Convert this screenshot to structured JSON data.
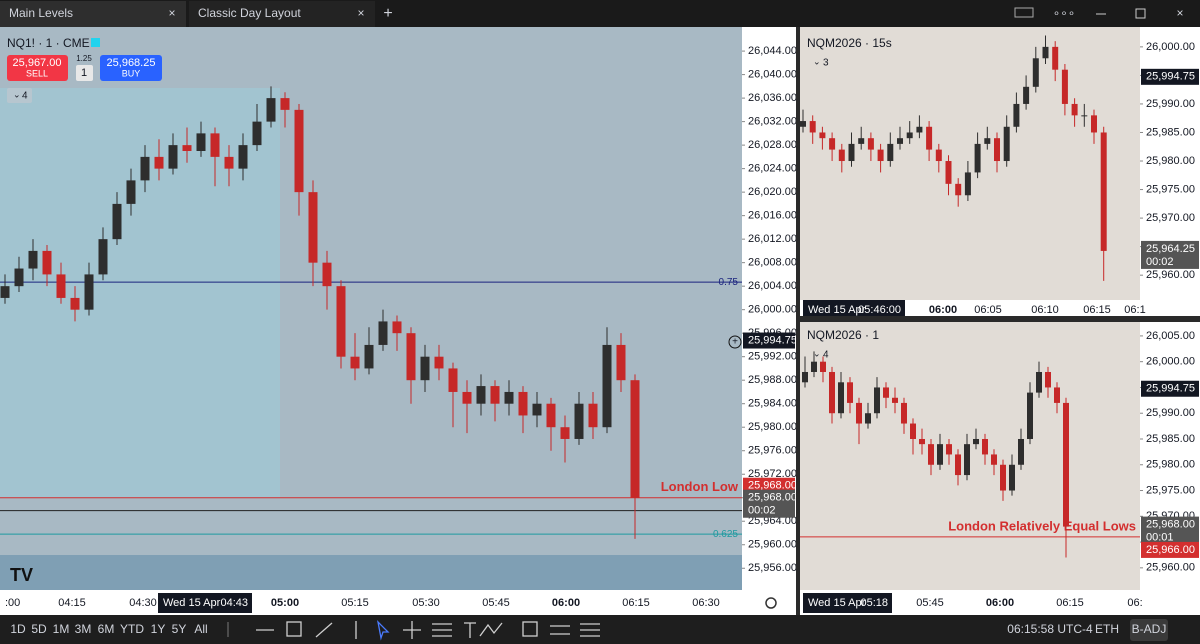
{
  "tabs": [
    "Main Levels",
    "Classic Day Layout"
  ],
  "chart_data": [
    {
      "type": "candlestick",
      "symbol": "NQ1! · 1 · CME",
      "indicators": "4",
      "sell": {
        "price": "25,967.00",
        "label": "SELL"
      },
      "spread": "1.25",
      "quantity": "1",
      "buy": {
        "price": "25,968.25",
        "label": "BUY"
      },
      "up_color": "#2e2e2e",
      "down_color": "#c62828",
      "background": "#a8b9c4",
      "ylim": [
        25952.3,
        26048.1
      ],
      "yticks": [
        {
          "value": 26044,
          "label": "26,044.00"
        },
        {
          "value": 26040,
          "label": "26,040.00"
        },
        {
          "value": 26036,
          "label": "26,036.00"
        },
        {
          "value": 26032,
          "label": "26,032.00"
        },
        {
          "value": 26028,
          "label": "26,028.00"
        },
        {
          "value": 26024,
          "label": "26,024.00"
        },
        {
          "value": 26020,
          "label": "26,020.00"
        },
        {
          "value": 26016,
          "label": "26,016.00"
        },
        {
          "value": 26012,
          "label": "26,012.00"
        },
        {
          "value": 26008,
          "label": "26,008.00"
        },
        {
          "value": 26004,
          "label": "26,004.00"
        },
        {
          "value": 26000,
          "label": "26,000.00"
        },
        {
          "value": 25996,
          "label": "25,996.00"
        },
        {
          "value": 25992,
          "label": "25,992.00"
        },
        {
          "value": 25988,
          "label": "25,988.00"
        },
        {
          "value": 25984,
          "label": "25,984.00"
        },
        {
          "value": 25980,
          "label": "25,980.00"
        },
        {
          "value": 25976,
          "label": "25,976.00"
        },
        {
          "value": 25972,
          "label": "25,972.00"
        },
        {
          "value": 25968,
          "label": "25,968.00"
        },
        {
          "value": 25964,
          "label": "25,964.00"
        },
        {
          "value": 25960,
          "label": "25,960.00"
        },
        {
          "value": 25956,
          "label": "25,956.00"
        }
      ],
      "time_labels": [
        ":00",
        "04:15",
        "04:30",
        "05:00",
        "05:15",
        "05:30",
        "05:45",
        "06:00",
        "06:15",
        "06:30"
      ],
      "crosshair_date": "Wed 15 Apr",
      "crosshair_time": "04:43",
      "levels": [
        {
          "value": 26004.68,
          "label": "0.75",
          "color": "#1a237e"
        },
        {
          "value": 25968,
          "label": "London Low",
          "color": "#d32f2f",
          "bold": true
        },
        {
          "value": 25965.8,
          "color": "#222222"
        },
        {
          "value": 25961.8,
          "label": "0.625",
          "color": "#1e9aa0"
        }
      ],
      "price_labels": [
        {
          "value": 25994.75,
          "label": "25,994.75",
          "color": "#131722"
        },
        {
          "value": 25968,
          "label": "25,968.00",
          "color": "#d32f2f"
        },
        {
          "value": 25968,
          "label": "25,968.00",
          "countdown": "00:02",
          "color": "#555555"
        }
      ],
      "candles": [
        [
          26002,
          26006,
          26001,
          26004
        ],
        [
          26004,
          26009,
          26003,
          26007
        ],
        [
          26007,
          26012,
          26005,
          26010
        ],
        [
          26010,
          26011,
          26004,
          26006
        ],
        [
          26006,
          26008,
          26001,
          26002
        ],
        [
          26002,
          26004,
          25998,
          26000
        ],
        [
          26000,
          26008,
          25999,
          26006
        ],
        [
          26006,
          26014,
          26005,
          26012
        ],
        [
          26012,
          26020,
          26011,
          26018
        ],
        [
          26018,
          26024,
          26016,
          26022
        ],
        [
          26022,
          26028,
          26020,
          26026
        ],
        [
          26026,
          26029,
          26022,
          26024
        ],
        [
          26024,
          26030,
          26023,
          26028
        ],
        [
          26028,
          26031,
          26025,
          26027
        ],
        [
          26027,
          26032,
          26026,
          26030
        ],
        [
          26030,
          26031,
          26021,
          26026
        ],
        [
          26026,
          26028,
          26021,
          26024
        ],
        [
          26024,
          26030,
          26022,
          26028
        ],
        [
          26028,
          26035,
          26027,
          26032
        ],
        [
          26032,
          26038,
          26031,
          26036
        ],
        [
          26036,
          26037,
          26031,
          26034
        ],
        [
          26034,
          26035,
          26016,
          26020
        ],
        [
          26020,
          26022,
          26004,
          26008
        ],
        [
          26008,
          26010,
          26000,
          26004
        ],
        [
          26004,
          26005,
          25990,
          25992
        ],
        [
          25992,
          25996,
          25988,
          25990
        ],
        [
          25990,
          25997,
          25989,
          25994
        ],
        [
          25994,
          26000,
          25993,
          25998
        ],
        [
          25998,
          25999,
          25993,
          25996
        ],
        [
          25996,
          25997,
          25984,
          25988
        ],
        [
          25988,
          25994,
          25986,
          25992
        ],
        [
          25992,
          25994,
          25988,
          25990
        ],
        [
          25990,
          25991,
          25980,
          25986
        ],
        [
          25986,
          25988,
          25979,
          25984
        ],
        [
          25984,
          25989,
          25982,
          25987
        ],
        [
          25987,
          25988,
          25981,
          25984
        ],
        [
          25984,
          25988,
          25982,
          25986
        ],
        [
          25986,
          25987,
          25979,
          25982
        ],
        [
          25982,
          25986,
          25980,
          25984
        ],
        [
          25984,
          25985,
          25976,
          25980
        ],
        [
          25980,
          25982,
          25974,
          25978
        ],
        [
          25978,
          25986,
          25977,
          25984
        ],
        [
          25984,
          25986,
          25978,
          25980
        ],
        [
          25980,
          25997,
          25979,
          25994
        ],
        [
          25994,
          25996,
          25986,
          25988
        ],
        [
          25988,
          25989,
          25961,
          25968
        ]
      ]
    },
    {
      "type": "candlestick",
      "symbol": "NQM2026 · 15s",
      "indicators": "3",
      "up_color": "#2e2e2e",
      "down_color": "#c62828",
      "background": "#e1dcd6",
      "ylim": [
        25955.65,
        26003.48
      ],
      "yticks": [
        {
          "value": 26000,
          "label": "26,000.00"
        },
        {
          "value": 25995,
          "label": "25,995.00"
        },
        {
          "value": 25990,
          "label": "25,990.00"
        },
        {
          "value": 25985,
          "label": "25,985.00"
        },
        {
          "value": 25980,
          "label": "25,980.00"
        },
        {
          "value": 25975,
          "label": "25,975.00"
        },
        {
          "value": 25970,
          "label": "25,970.00"
        },
        {
          "value": 25965,
          "label": "25,965.00"
        },
        {
          "value": 25960,
          "label": "25,960.00"
        }
      ],
      "time_labels": [
        "06:00",
        "06:05",
        "06:10",
        "06:15",
        "06:1"
      ],
      "crosshair_date": "Wed 15 Apr",
      "crosshair_time": "05:46:00",
      "levels": [],
      "price_labels": [
        {
          "value": 25994.75,
          "label": "25,994.75",
          "color": "#131722"
        },
        {
          "value": 25964.25,
          "label": "25,964.25",
          "countdown": "00:02",
          "color": "#555555"
        }
      ],
      "candles": [
        [
          25986,
          25989,
          25985,
          25987
        ],
        [
          25987,
          25988,
          25983,
          25985
        ],
        [
          25985,
          25986,
          25982,
          25984
        ],
        [
          25984,
          25985,
          25980,
          25982
        ],
        [
          25982,
          25983,
          25978,
          25980
        ],
        [
          25980,
          25985,
          25979,
          25983
        ],
        [
          25983,
          25986,
          25982,
          25984
        ],
        [
          25984,
          25985,
          25980,
          25982
        ],
        [
          25982,
          25983,
          25978,
          25980
        ],
        [
          25980,
          25985,
          25979,
          25983
        ],
        [
          25983,
          25986,
          25982,
          25984
        ],
        [
          25984,
          25987,
          25983,
          25985
        ],
        [
          25985,
          25988,
          25984,
          25986
        ],
        [
          25986,
          25987,
          25980,
          25982
        ],
        [
          25982,
          25983,
          25978,
          25980
        ],
        [
          25980,
          25981,
          25974,
          25976
        ],
        [
          25976,
          25977,
          25972,
          25974
        ],
        [
          25974,
          25980,
          25973,
          25978
        ],
        [
          25978,
          25985,
          25977,
          25983
        ],
        [
          25983,
          25986,
          25982,
          25984
        ],
        [
          25984,
          25985,
          25978,
          25980
        ],
        [
          25980,
          25988,
          25979,
          25986
        ],
        [
          25986,
          25992,
          25985,
          25990
        ],
        [
          25990,
          25995,
          25989,
          25993
        ],
        [
          25993,
          26000,
          25992,
          25998
        ],
        [
          25998,
          26002,
          25997,
          26000
        ],
        [
          26000,
          26001,
          25994,
          25996
        ],
        [
          25996,
          25997,
          25988,
          25990
        ],
        [
          25990,
          25991,
          25986,
          25988
        ],
        [
          25988,
          25990,
          25986,
          25988
        ],
        [
          25988,
          25989,
          25983,
          25985
        ],
        [
          25985,
          25986,
          25959,
          25964.25
        ]
      ]
    },
    {
      "type": "candlestick",
      "symbol": "NQM2026 · 1",
      "indicators": "4",
      "up_color": "#2e2e2e",
      "down_color": "#c62828",
      "background": "#e1dcd6",
      "ylim": [
        25955.7,
        26007.7
      ],
      "yticks": [
        {
          "value": 26005,
          "label": "26,005.00"
        },
        {
          "value": 26000,
          "label": "26,000.00"
        },
        {
          "value": 25995,
          "label": "25,995.00"
        },
        {
          "value": 25990,
          "label": "25,990.00"
        },
        {
          "value": 25985,
          "label": "25,985.00"
        },
        {
          "value": 25980,
          "label": "25,980.00"
        },
        {
          "value": 25975,
          "label": "25,975.00"
        },
        {
          "value": 25970,
          "label": "25,970.00"
        },
        {
          "value": 25965,
          "label": "25,965.00"
        },
        {
          "value": 25960,
          "label": "25,960.00"
        }
      ],
      "time_labels": [
        "05:45",
        "06:00",
        "06:15",
        "06:"
      ],
      "crosshair_date": "Wed 15 Apr",
      "crosshair_time": "05:18",
      "levels": [
        {
          "value": 25966,
          "label": "London Relatively Equal Lows",
          "color": "#d32f2f",
          "bold": true
        }
      ],
      "price_labels": [
        {
          "value": 25994.75,
          "label": "25,994.75",
          "color": "#131722"
        },
        {
          "value": 25968,
          "label": "25,968.00",
          "countdown": "00:01",
          "color": "#555555"
        },
        {
          "value": 25966,
          "label": "25,966.00",
          "color": "#d32f2f"
        }
      ],
      "candles": [
        [
          25996,
          26001,
          25995,
          25998
        ],
        [
          25998,
          26002,
          25997,
          26000
        ],
        [
          26000,
          26001,
          25996,
          25998
        ],
        [
          25998,
          25999,
          25988,
          25990
        ],
        [
          25990,
          25998,
          25989,
          25996
        ],
        [
          25996,
          25997,
          25990,
          25992
        ],
        [
          25992,
          25993,
          25984,
          25988
        ],
        [
          25988,
          25992,
          25987,
          25990
        ],
        [
          25990,
          25997,
          25989,
          25995
        ],
        [
          25995,
          25996,
          25991,
          25993
        ],
        [
          25993,
          25995,
          25990,
          25992
        ],
        [
          25992,
          25993,
          25986,
          25988
        ],
        [
          25988,
          25989,
          25982,
          25985
        ],
        [
          25985,
          25987,
          25982,
          25984
        ],
        [
          25984,
          25985,
          25978,
          25980
        ],
        [
          25980,
          25986,
          25979,
          25984
        ],
        [
          25984,
          25985,
          25980,
          25982
        ],
        [
          25982,
          25983,
          25976,
          25978
        ],
        [
          25978,
          25986,
          25977,
          25984
        ],
        [
          25984,
          25987,
          25983,
          25985
        ],
        [
          25985,
          25986,
          25980,
          25982
        ],
        [
          25982,
          25983,
          25978,
          25980
        ],
        [
          25980,
          25981,
          25973,
          25975
        ],
        [
          25975,
          25982,
          25974,
          25980
        ],
        [
          25980,
          25987,
          25979,
          25985
        ],
        [
          25985,
          25996,
          25984,
          25994
        ],
        [
          25994,
          26000,
          25993,
          25998
        ],
        [
          25998,
          25999,
          25993,
          25995
        ],
        [
          25995,
          25996,
          25990,
          25992
        ],
        [
          25992,
          25993,
          25962,
          25968
        ]
      ]
    }
  ],
  "toolbar": {
    "ranges": [
      "1D",
      "5D",
      "1M",
      "3M",
      "6M",
      "YTD",
      "1Y",
      "5Y",
      "All"
    ],
    "clock": "06:15:58 UTC-4",
    "session": "ETH",
    "adjustment": "B-ADJ"
  }
}
